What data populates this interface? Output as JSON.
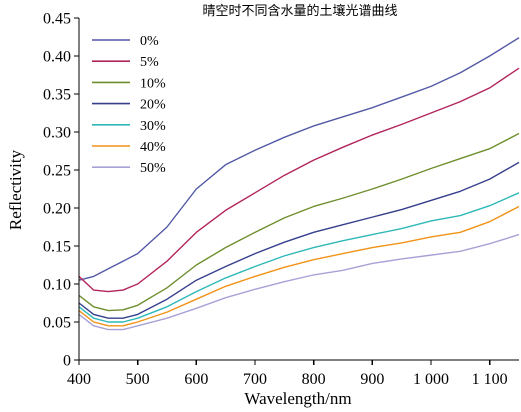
{
  "chart_data": {
    "type": "line",
    "title": "晴空时不同含水量的土壤光谱曲线",
    "xlabel": "Wavelength/nm",
    "ylabel": "Reflectivity",
    "xlim": [
      400,
      1150
    ],
    "ylim": [
      0,
      0.45
    ],
    "x_ticks": [
      400,
      500,
      600,
      700,
      800,
      900,
      1000,
      1100
    ],
    "x_tick_labels": [
      "400",
      "500",
      "600",
      "700",
      "800",
      "900",
      "1 000",
      "1 100"
    ],
    "y_ticks": [
      0,
      0.05,
      0.1,
      0.15,
      0.2,
      0.25,
      0.3,
      0.35,
      0.4,
      0.45
    ],
    "y_tick_labels": [
      "0",
      "0.05",
      "0.10",
      "0.15",
      "0.20",
      "0.25",
      "0.30",
      "0.35",
      "0.40",
      "0.45"
    ],
    "grid": false,
    "legend_position": "top-left",
    "x": [
      400,
      425,
      450,
      475,
      500,
      550,
      600,
      650,
      700,
      750,
      800,
      850,
      900,
      950,
      1000,
      1050,
      1100,
      1150
    ],
    "series": [
      {
        "name": "0%",
        "color": "#5459a6",
        "values": [
          0.105,
          0.11,
          0.12,
          0.13,
          0.14,
          0.175,
          0.225,
          0.257,
          0.276,
          0.293,
          0.308,
          0.32,
          0.332,
          0.346,
          0.36,
          0.378,
          0.4,
          0.424
        ]
      },
      {
        "name": "5%",
        "color": "#b2245c",
        "values": [
          0.11,
          0.092,
          0.09,
          0.092,
          0.1,
          0.13,
          0.168,
          0.197,
          0.22,
          0.243,
          0.263,
          0.28,
          0.296,
          0.31,
          0.325,
          0.34,
          0.358,
          0.384
        ]
      },
      {
        "name": "10%",
        "color": "#6f8f2f",
        "values": [
          0.085,
          0.07,
          0.065,
          0.066,
          0.072,
          0.095,
          0.125,
          0.148,
          0.168,
          0.187,
          0.202,
          0.213,
          0.225,
          0.238,
          0.252,
          0.265,
          0.278,
          0.298
        ]
      },
      {
        "name": "20%",
        "color": "#363f8c",
        "values": [
          0.075,
          0.06,
          0.055,
          0.055,
          0.06,
          0.08,
          0.105,
          0.123,
          0.14,
          0.155,
          0.168,
          0.178,
          0.188,
          0.198,
          0.21,
          0.222,
          0.238,
          0.26
        ]
      },
      {
        "name": "30%",
        "color": "#2fb8b8",
        "values": [
          0.07,
          0.055,
          0.05,
          0.05,
          0.055,
          0.07,
          0.09,
          0.108,
          0.123,
          0.137,
          0.148,
          0.157,
          0.165,
          0.173,
          0.183,
          0.19,
          0.203,
          0.22
        ]
      },
      {
        "name": "40%",
        "color": "#f29218",
        "values": [
          0.065,
          0.05,
          0.045,
          0.045,
          0.05,
          0.063,
          0.08,
          0.097,
          0.11,
          0.122,
          0.132,
          0.14,
          0.148,
          0.154,
          0.162,
          0.168,
          0.182,
          0.202
        ]
      },
      {
        "name": "50%",
        "color": "#a7a2d6",
        "values": [
          0.06,
          0.045,
          0.04,
          0.04,
          0.045,
          0.055,
          0.068,
          0.082,
          0.093,
          0.103,
          0.112,
          0.118,
          0.127,
          0.133,
          0.138,
          0.143,
          0.153,
          0.165
        ]
      }
    ]
  }
}
